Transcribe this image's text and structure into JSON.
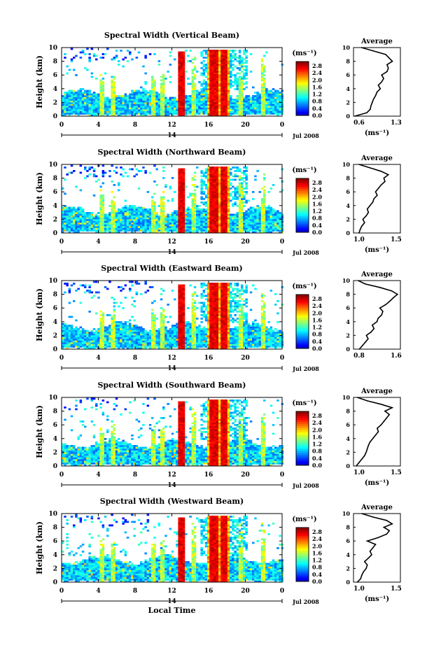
{
  "chart_data": [
    {
      "type": "heatmap",
      "title": "Spectral Width (Vertical Beam)",
      "ylabel": "Height (km)",
      "xlim": [
        0,
        24
      ],
      "ylim": [
        0,
        10
      ],
      "x_ticks": [
        "0",
        "4",
        "8",
        "12",
        "16",
        "20",
        "0"
      ],
      "y_ticks": [
        "0",
        "2",
        "4",
        "6",
        "8",
        "10"
      ],
      "date_label": "14",
      "month_label": "Jul 2008",
      "colorbar": {
        "unit": "(ms⁻¹)",
        "ticks": [
          "0.0",
          "0.4",
          "0.8",
          "1.2",
          "1.6",
          "2.0",
          "2.4",
          "2.8"
        ],
        "range": [
          0,
          3.0
        ]
      },
      "profile": {
        "title": "Average",
        "xlabel": "(ms⁻¹)",
        "xticks": [
          "0.6",
          "1.3"
        ],
        "xlim": [
          0.6,
          1.3
        ],
        "heights": [
          0,
          0.5,
          1,
          1.5,
          2,
          2.5,
          3,
          3.5,
          4,
          4.5,
          5,
          5.5,
          6,
          6.5,
          7,
          7.5,
          8,
          8.5,
          9,
          9.5,
          10
        ],
        "values": [
          0.62,
          0.8,
          0.85,
          0.86,
          0.88,
          0.9,
          0.93,
          0.95,
          1.0,
          0.97,
          1.02,
          1.05,
          1.02,
          1.1,
          1.12,
          1.1,
          1.18,
          1.13,
          1.08,
          0.9,
          0.72
        ]
      }
    },
    {
      "type": "heatmap",
      "title": "Spectral Width (Northward Beam)",
      "ylabel": "Height (km)",
      "xlim": [
        0,
        24
      ],
      "ylim": [
        0,
        10
      ],
      "x_ticks": [
        "0",
        "4",
        "8",
        "12",
        "16",
        "20",
        "0"
      ],
      "y_ticks": [
        "0",
        "2",
        "4",
        "6",
        "8",
        "10"
      ],
      "date_label": "14",
      "month_label": "Jul 2008",
      "colorbar": {
        "unit": "(ms⁻¹)",
        "ticks": [
          "0.0",
          "0.4",
          "0.8",
          "1.2",
          "1.6",
          "2.0",
          "2.4",
          "2.8"
        ],
        "range": [
          0,
          3.0
        ]
      },
      "profile": {
        "title": "Average",
        "xlabel": "(ms⁻¹)",
        "xticks": [
          "1.0",
          "1.5"
        ],
        "xlim": [
          0.85,
          1.7
        ],
        "heights": [
          0,
          0.5,
          1,
          1.5,
          2,
          2.5,
          3,
          3.5,
          4,
          4.5,
          5,
          5.5,
          6,
          6.5,
          7,
          7.5,
          8,
          8.5,
          9,
          9.5,
          10
        ],
        "values": [
          0.95,
          0.97,
          1.0,
          1.05,
          1.02,
          1.08,
          1.12,
          1.1,
          1.15,
          1.2,
          1.22,
          1.28,
          1.25,
          1.3,
          1.35,
          1.42,
          1.4,
          1.48,
          1.35,
          1.15,
          0.95
        ]
      }
    },
    {
      "type": "heatmap",
      "title": "Spectral Width (Eastward Beam)",
      "ylabel": "Height (km)",
      "xlim": [
        0,
        24
      ],
      "ylim": [
        0,
        10
      ],
      "x_ticks": [
        "0",
        "4",
        "8",
        "12",
        "16",
        "20",
        "0"
      ],
      "y_ticks": [
        "0",
        "2",
        "4",
        "6",
        "8",
        "10"
      ],
      "date_label": "14",
      "month_label": "Jul 2008",
      "colorbar": {
        "unit": "(ms⁻¹)",
        "ticks": [
          "0.0",
          "0.4",
          "0.8",
          "1.2",
          "1.6",
          "2.0",
          "2.4",
          "2.8"
        ],
        "range": [
          0,
          3.0
        ]
      },
      "profile": {
        "title": "Average",
        "xlabel": "",
        "xticks": [
          "0.8",
          "1.6"
        ],
        "xlim": [
          0.8,
          1.6
        ],
        "heights": [
          0,
          0.5,
          1,
          1.5,
          2,
          2.5,
          3,
          3.5,
          4,
          4.5,
          5,
          5.5,
          6,
          6.5,
          7,
          7.5,
          8,
          8.5,
          9,
          9.5,
          10
        ],
        "values": [
          0.9,
          0.95,
          1.0,
          1.05,
          1.02,
          1.1,
          1.15,
          1.12,
          1.2,
          1.22,
          1.28,
          1.3,
          1.25,
          1.35,
          1.42,
          1.48,
          1.55,
          1.45,
          1.25,
          1.0,
          0.88
        ]
      }
    },
    {
      "type": "heatmap",
      "title": "Spectral Width (Southward Beam)",
      "ylabel": "Height (km)",
      "xlim": [
        0,
        24
      ],
      "ylim": [
        0,
        10
      ],
      "x_ticks": [
        "0",
        "4",
        "8",
        "12",
        "16",
        "20",
        "0"
      ],
      "y_ticks": [
        "0",
        "2",
        "4",
        "6",
        "8",
        "10"
      ],
      "date_label": "14",
      "month_label": "Jul 2008",
      "colorbar": {
        "unit": "(ms⁻¹)",
        "ticks": [
          "0.0",
          "0.4",
          "0.8",
          "1.2",
          "1.6",
          "2.0",
          "2.4",
          "2.8"
        ],
        "range": [
          0,
          3.0
        ]
      },
      "profile": {
        "title": "Average",
        "xlabel": "(ms⁻¹)",
        "xticks": [
          "1.0",
          "1.5"
        ],
        "xlim": [
          0.85,
          1.7
        ],
        "heights": [
          0,
          0.5,
          1,
          1.5,
          2,
          2.5,
          3,
          3.5,
          4,
          4.5,
          5,
          5.5,
          6,
          6.5,
          7,
          7.5,
          8,
          8.5,
          9,
          9.5,
          10
        ],
        "values": [
          0.9,
          0.95,
          1.0,
          1.05,
          1.08,
          1.1,
          1.12,
          1.15,
          1.2,
          1.25,
          1.3,
          1.28,
          1.35,
          1.4,
          1.45,
          1.5,
          1.42,
          1.55,
          1.35,
          1.1,
          0.92
        ]
      }
    },
    {
      "type": "heatmap",
      "title": "Spectral Width (Westward Beam)",
      "ylabel": "Height (km)",
      "xlabel": "Local Time",
      "xlim": [
        0,
        24
      ],
      "ylim": [
        0,
        10
      ],
      "x_ticks": [
        "0",
        "4",
        "8",
        "12",
        "16",
        "20",
        "0"
      ],
      "y_ticks": [
        "0",
        "2",
        "4",
        "6",
        "8",
        "10"
      ],
      "date_label": "14",
      "month_label": "Jul 2008",
      "colorbar": {
        "unit": "(ms⁻¹)",
        "ticks": [
          "0.0",
          "0.4",
          "0.8",
          "1.2",
          "1.6",
          "2.0",
          "2.4",
          "2.8"
        ],
        "range": [
          0,
          3.0
        ]
      },
      "profile": {
        "title": "Average",
        "xlabel": "(ms⁻¹)",
        "xticks": [
          "1.0",
          "1.5"
        ],
        "xlim": [
          0.85,
          1.7
        ],
        "heights": [
          0,
          0.5,
          1,
          1.5,
          2,
          2.5,
          3,
          3.5,
          4,
          4.5,
          5,
          5.5,
          6,
          6.5,
          7,
          7.5,
          8,
          8.5,
          9,
          9.5,
          10
        ],
        "values": [
          0.92,
          0.98,
          1.0,
          1.03,
          1.08,
          1.1,
          1.05,
          1.12,
          1.18,
          1.15,
          1.2,
          1.25,
          1.1,
          1.3,
          1.45,
          1.5,
          1.4,
          1.55,
          1.45,
          1.2,
          1.0
        ]
      }
    }
  ]
}
